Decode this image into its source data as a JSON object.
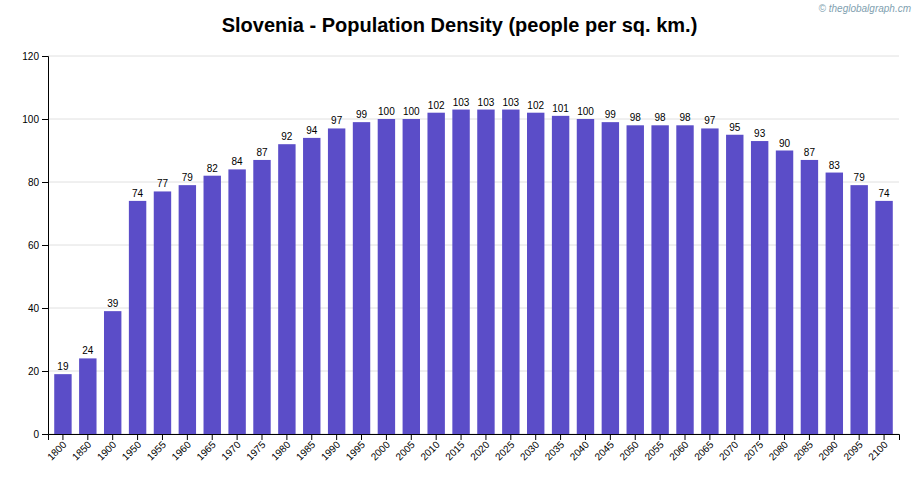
{
  "chart_data": {
    "type": "bar",
    "title": "Slovenia - Population Density (people per sq. km.)",
    "annotations": [
      "© theglobalgraph.cm"
    ],
    "categories": [
      1800,
      1850,
      1900,
      1950,
      1955,
      1960,
      1965,
      1970,
      1975,
      1980,
      1985,
      1990,
      1995,
      2000,
      2005,
      2010,
      2015,
      2020,
      2025,
      2030,
      2035,
      2040,
      2045,
      2050,
      2055,
      2060,
      2065,
      2070,
      2075,
      2080,
      2085,
      2090,
      2095,
      2100
    ],
    "values": [
      19,
      24,
      39,
      74,
      77,
      79,
      82,
      84,
      87,
      92,
      94,
      97,
      99,
      100,
      100,
      102,
      103,
      103,
      103,
      102,
      101,
      100,
      99,
      98,
      98,
      98,
      97,
      95,
      93,
      90,
      87,
      83,
      79,
      74
    ],
    "color": "#5B4DC8",
    "ylim": [
      0,
      120
    ],
    "yticks": [
      0,
      20,
      40,
      60,
      80,
      100,
      120
    ],
    "grid": true,
    "data_labels": true
  }
}
